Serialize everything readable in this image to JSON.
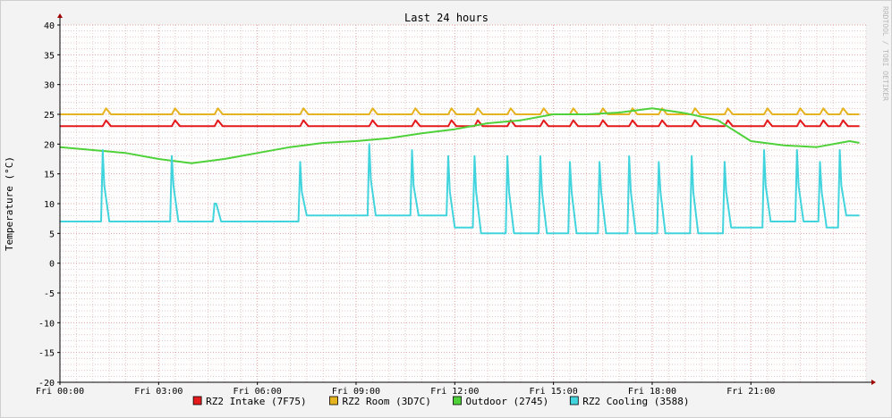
{
  "chart_data": {
    "type": "line",
    "title": "Last 24 hours",
    "ylabel": "Temperature (°C)",
    "watermark": "RRDTOOL / TOBI OETIKER",
    "ylim": [
      -20,
      40
    ],
    "y_ticks": [
      40,
      35,
      30,
      25,
      20,
      15,
      10,
      5,
      0,
      -5,
      -10,
      -15,
      -20
    ],
    "xlim": [
      0,
      24.5
    ],
    "x_ticks": [
      {
        "hour": 0,
        "label": "Fri 00:00"
      },
      {
        "hour": 3,
        "label": "Fri 03:00"
      },
      {
        "hour": 6,
        "label": "Fri 06:00"
      },
      {
        "hour": 9,
        "label": "Fri 09:00"
      },
      {
        "hour": 12,
        "label": "Fri 12:00"
      },
      {
        "hour": 15,
        "label": "Fri 15:00"
      },
      {
        "hour": 18,
        "label": "Fri 18:00"
      },
      {
        "hour": 21,
        "label": "Fri 21:00"
      }
    ],
    "grid": true,
    "legend_position": "bottom",
    "series": [
      {
        "name": "RZ2 Intake (7F75)",
        "color": "#e41a1c",
        "x": [
          0,
          1.3,
          1.4,
          1.55,
          3.4,
          3.5,
          3.65,
          4.7,
          4.8,
          4.95,
          7.3,
          7.4,
          7.55,
          9.4,
          9.5,
          9.65,
          10.7,
          10.8,
          10.95,
          11.8,
          11.9,
          12.05,
          12.6,
          12.7,
          12.85,
          13.6,
          13.7,
          13.85,
          14.6,
          14.7,
          14.85,
          15.5,
          15.6,
          15.75,
          16.4,
          16.5,
          16.65,
          17.3,
          17.4,
          17.55,
          18.2,
          18.3,
          18.45,
          19.2,
          19.3,
          19.45,
          20.2,
          20.3,
          20.45,
          21.4,
          21.5,
          21.65,
          22.4,
          22.5,
          22.65,
          23.1,
          23.2,
          23.35,
          23.7,
          23.8,
          23.95,
          24.3
        ],
        "y": [
          23,
          23,
          24,
          23,
          23,
          24,
          23,
          23,
          24,
          23,
          23,
          24,
          23,
          23,
          24,
          23,
          23,
          24,
          23,
          23,
          24,
          23,
          23,
          24,
          23,
          23,
          24,
          23,
          23,
          24,
          23,
          23,
          24,
          23,
          23,
          24,
          23,
          23,
          24,
          23,
          23,
          24,
          23,
          23,
          24,
          23,
          23,
          24,
          23,
          23,
          24,
          23,
          23,
          24,
          23,
          23,
          24,
          23,
          23,
          24,
          23,
          23
        ]
      },
      {
        "name": "RZ2 Room (3D7C)",
        "color": "#e6b320",
        "x": [
          0,
          1.3,
          1.4,
          1.55,
          3.4,
          3.5,
          3.65,
          4.7,
          4.8,
          4.95,
          7.3,
          7.4,
          7.55,
          9.4,
          9.5,
          9.65,
          10.7,
          10.8,
          10.95,
          11.8,
          11.9,
          12.05,
          12.6,
          12.7,
          12.85,
          13.6,
          13.7,
          13.85,
          14.6,
          14.7,
          14.85,
          15.5,
          15.6,
          15.75,
          16.4,
          16.5,
          16.65,
          17.3,
          17.4,
          17.55,
          18.2,
          18.3,
          18.45,
          19.2,
          19.3,
          19.45,
          20.2,
          20.3,
          20.45,
          21.4,
          21.5,
          21.65,
          22.4,
          22.5,
          22.65,
          23.1,
          23.2,
          23.35,
          23.7,
          23.8,
          23.95,
          24.3
        ],
        "y": [
          25,
          25,
          26,
          25,
          25,
          26,
          25,
          25,
          26,
          25,
          25,
          26,
          25,
          25,
          26,
          25,
          25,
          26,
          25,
          25,
          26,
          25,
          25,
          26,
          25,
          25,
          26,
          25,
          25,
          26,
          25,
          25,
          26,
          25,
          25,
          26,
          25,
          25,
          26,
          25,
          25,
          26,
          25,
          25,
          26,
          25,
          25,
          26,
          25,
          25,
          26,
          25,
          25,
          26,
          25,
          25,
          26,
          25,
          25,
          26,
          25,
          25
        ]
      },
      {
        "name": "Outdoor (2745)",
        "color": "#4fd13a",
        "x": [
          0,
          1.0,
          2.0,
          3.0,
          4.0,
          5.0,
          6.0,
          7.0,
          8.0,
          9.0,
          10.0,
          11.0,
          12.0,
          13.0,
          14.0,
          15.0,
          16.0,
          17.0,
          18.0,
          19.0,
          20.0,
          21.0,
          22.0,
          23.0,
          24.0,
          24.3
        ],
        "y": [
          19.5,
          19.0,
          18.5,
          17.5,
          16.8,
          17.5,
          18.5,
          19.5,
          20.2,
          20.5,
          21.0,
          21.8,
          22.5,
          23.5,
          24.0,
          25.0,
          25.0,
          25.3,
          26.0,
          25.2,
          24.0,
          20.5,
          19.8,
          19.5,
          20.5,
          20.2
        ]
      },
      {
        "name": "RZ2 Cooling (3588)",
        "color": "#42d4dd",
        "x": [
          0,
          1.25,
          1.3,
          1.35,
          1.5,
          3.35,
          3.4,
          3.45,
          3.6,
          4.65,
          4.7,
          4.75,
          4.9,
          7.25,
          7.3,
          7.35,
          7.5,
          9.35,
          9.4,
          9.45,
          9.6,
          10.65,
          10.7,
          10.75,
          10.9,
          11.75,
          11.8,
          11.85,
          12.0,
          12.55,
          12.6,
          12.65,
          12.8,
          13.55,
          13.6,
          13.65,
          13.8,
          14.55,
          14.6,
          14.65,
          14.8,
          15.45,
          15.5,
          15.55,
          15.7,
          16.35,
          16.4,
          16.45,
          16.6,
          17.25,
          17.3,
          17.35,
          17.5,
          18.15,
          18.2,
          18.25,
          18.4,
          19.15,
          19.2,
          19.25,
          19.4,
          20.15,
          20.2,
          20.25,
          20.4,
          21.35,
          21.4,
          21.45,
          21.6,
          22.35,
          22.4,
          22.45,
          22.6,
          23.05,
          23.1,
          23.15,
          23.3,
          23.65,
          23.7,
          23.75,
          23.9,
          24.3
        ],
        "y": [
          7,
          7,
          19,
          13,
          7,
          7,
          18,
          13,
          7,
          7,
          10,
          10,
          7,
          7,
          17,
          12,
          8,
          8,
          20,
          14,
          8,
          8,
          19,
          13,
          8,
          8,
          18,
          12,
          6,
          6,
          18,
          12,
          5,
          5,
          18,
          12,
          5,
          5,
          18,
          12,
          5,
          5,
          17,
          12,
          5,
          5,
          17,
          12,
          5,
          5,
          18,
          12,
          5,
          5,
          17,
          12,
          5,
          5,
          18,
          12,
          5,
          5,
          17,
          12,
          6,
          6,
          19,
          13,
          7,
          7,
          19,
          13,
          7,
          7,
          17,
          12,
          6,
          6,
          19,
          13,
          8,
          8
        ]
      }
    ]
  }
}
